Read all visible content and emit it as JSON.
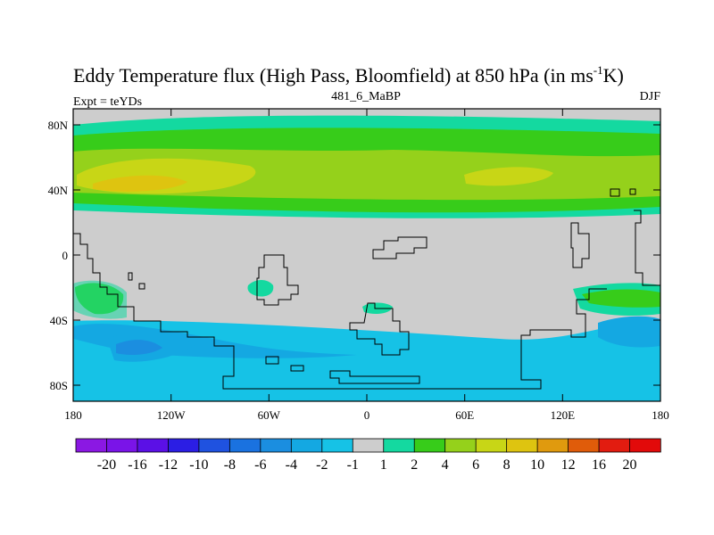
{
  "title": {
    "main": "Eddy Temperature flux (High Pass, Bloomfield) at 850 hPa (in ms",
    "sup": "-1",
    "tail": "K)",
    "subtitle": "481_6_MaBP",
    "left": "Expt = teYDs",
    "right": "DJF"
  },
  "axes": {
    "x_ticks": [
      "180",
      "120W",
      "60W",
      "0",
      "60E",
      "120E",
      "180"
    ],
    "y_ticks": [
      "80N",
      "40N",
      "0",
      "40S",
      "80S"
    ]
  },
  "colorbar": {
    "labels": [
      "-20",
      "-16",
      "-12",
      "-10",
      "-8",
      "-6",
      "-4",
      "-2",
      "-1",
      "1",
      "2",
      "4",
      "6",
      "8",
      "10",
      "12",
      "16",
      "20"
    ],
    "colors": [
      "#8b18e3",
      "#7a14e8",
      "#5b10e6",
      "#2b1ee4",
      "#1f52e0",
      "#1a72e0",
      "#1b8ee0",
      "#14a8e2",
      "#16c2e6",
      "#cdcdcd",
      "#14d9a0",
      "#37cc1a",
      "#95d11b",
      "#c8d616",
      "#dec410",
      "#e09a0e",
      "#e05c0a",
      "#e21c10",
      "#e20a0a"
    ]
  },
  "colors": {
    "ocean_bg": "#cdcdcd",
    "zone_green": "#37cc1a",
    "zone_lightgreen": "#95d11b",
    "zone_teal": "#14d9a0",
    "zone_yellow": "#c8d616",
    "zone_orange": "#dec410",
    "zone_cyan": "#16c2e6",
    "zone_blue": "#14a8e2",
    "zone_darkblue": "#1b8ee0"
  }
}
